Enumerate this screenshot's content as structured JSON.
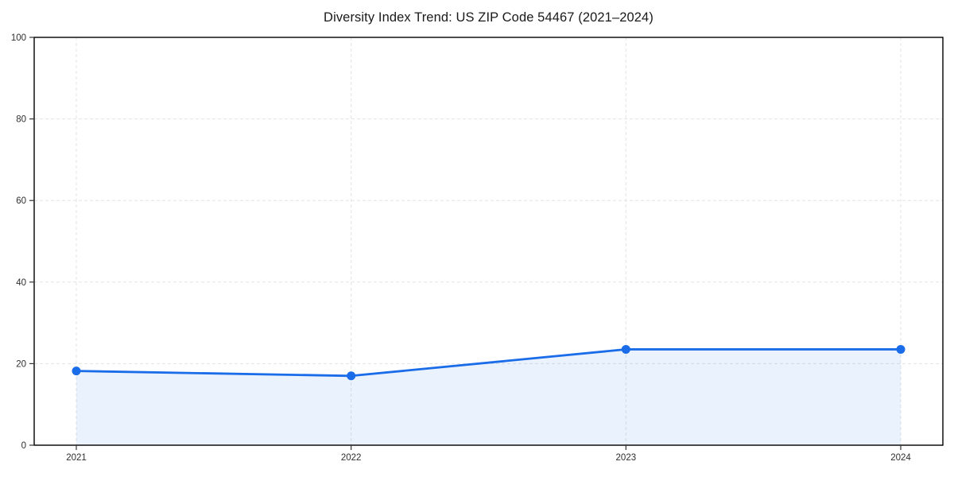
{
  "chart": {
    "title": "Diversity Index Trend: US ZIP Code 54467 (2021–2024)"
  },
  "chart_data": {
    "type": "area",
    "title": "Diversity Index Trend: US ZIP Code 54467 (2021–2024)",
    "x": [
      "2021",
      "2022",
      "2023",
      "2024"
    ],
    "values": [
      18.2,
      17.0,
      23.5,
      23.5
    ],
    "xlabel": "",
    "ylabel": "",
    "ylim": [
      0,
      100
    ],
    "yticks": [
      0,
      20,
      40,
      60,
      80,
      100
    ],
    "grid": "dashed-both-axes",
    "legend": "none",
    "marker": "circle",
    "colors": {
      "line": "#1a6ce8",
      "fill": "rgba(26,108,232,0.09)",
      "grid": "#e3e3e3",
      "spine": "#000000",
      "tick_text": "#2e2e2e",
      "background": "#ffffff"
    }
  }
}
